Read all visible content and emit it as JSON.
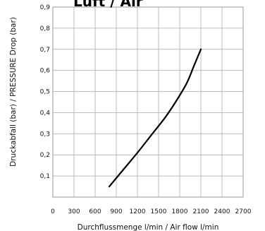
{
  "chart_data": {
    "type": "line",
    "title": "Luft / Air",
    "xlabel": "Durchflussmenge l/min / Air flow l/min",
    "ylabel": "Druckabfall (bar) / PRESSURE Drop (bar)",
    "xlim": [
      0,
      2700
    ],
    "ylim": [
      0,
      0.9
    ],
    "x_ticks": [
      0,
      300,
      600,
      900,
      1200,
      1500,
      1800,
      2100,
      2400,
      2700
    ],
    "x_tick_labels": [
      "0",
      "300",
      "600",
      "900",
      "1200",
      "1500",
      "1800",
      "2100",
      "2400",
      "2700"
    ],
    "y_ticks": [
      0.1,
      0.2,
      0.3,
      0.4,
      0.5,
      0.6,
      0.7,
      0.8,
      0.9
    ],
    "y_tick_labels": [
      "0,1",
      "0,2",
      "0,3",
      "0,4",
      "0,5",
      "0,6",
      "0,7",
      "0,8",
      "0,9"
    ],
    "grid": true,
    "series": [
      {
        "x": [
          800,
          1000,
          1200,
          1400,
          1600,
          1750,
          1900,
          2000,
          2100
        ],
        "y": [
          0.05,
          0.13,
          0.21,
          0.295,
          0.38,
          0.455,
          0.54,
          0.62,
          0.7
        ],
        "color": "#000000"
      }
    ]
  }
}
